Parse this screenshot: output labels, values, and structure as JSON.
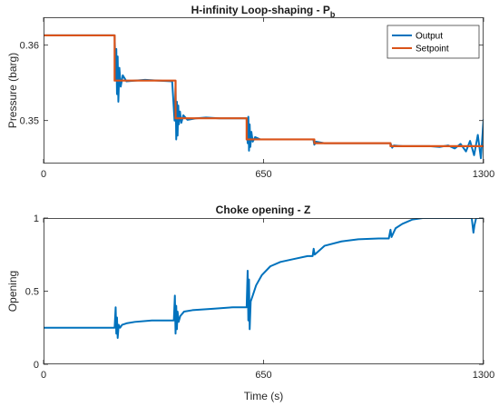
{
  "chart_data": [
    {
      "type": "line",
      "title": "H-infinity Loop-shaping - P",
      "title_subscript": "b",
      "xlabel": "",
      "ylabel": "Pressure (barg)",
      "xlim": [
        0,
        1300
      ],
      "ylim": [
        0.3443,
        0.3637
      ],
      "xticks": [
        0,
        650,
        1300
      ],
      "xtick_labels": [
        "0",
        "650",
        "1300"
      ],
      "yticks": [
        0.35,
        0.36
      ],
      "ytick_labels": [
        "0.35",
        "0.36"
      ],
      "legend": {
        "placement": "top-right",
        "entries": [
          "Output",
          "Setpoint"
        ]
      },
      "grid": false,
      "series": [
        {
          "name": "Output",
          "color": "#0072BD",
          "x": [
            0,
            210,
            213,
            215,
            217,
            219,
            221,
            224,
            228,
            234,
            245,
            270,
            300,
            340,
            380,
            387,
            390,
            392,
            394,
            396,
            398,
            400,
            403,
            407,
            413,
            425,
            450,
            480,
            520,
            570,
            600,
            603,
            605,
            607,
            609,
            611,
            614,
            618,
            625,
            640,
            680,
            720,
            760,
            797,
            800,
            805,
            830,
            880,
            930,
            980,
            1025,
            1030,
            1035,
            1060,
            1100,
            1140,
            1170,
            1195,
            1215,
            1232,
            1248,
            1260,
            1272,
            1283,
            1292,
            1300
          ],
          "y": [
            0.3613,
            0.3613,
            0.3555,
            0.3595,
            0.3535,
            0.3585,
            0.3525,
            0.357,
            0.3545,
            0.356,
            0.3552,
            0.3553,
            0.3554,
            0.3553,
            0.3552,
            0.35,
            0.3545,
            0.3475,
            0.3525,
            0.348,
            0.352,
            0.3495,
            0.3512,
            0.3497,
            0.3507,
            0.3501,
            0.3503,
            0.3504,
            0.3503,
            0.3503,
            0.3503,
            0.347,
            0.3505,
            0.346,
            0.3495,
            0.3465,
            0.3485,
            0.3472,
            0.3478,
            0.3475,
            0.3475,
            0.3475,
            0.3475,
            0.3475,
            0.3468,
            0.3472,
            0.347,
            0.347,
            0.347,
            0.347,
            0.347,
            0.3464,
            0.3467,
            0.3466,
            0.3466,
            0.3466,
            0.3465,
            0.3467,
            0.3463,
            0.3469,
            0.3459,
            0.3473,
            0.3454,
            0.3481,
            0.345,
            0.3502
          ]
        },
        {
          "name": "Setpoint",
          "color": "#D95319",
          "x": [
            0,
            210,
            210,
            390,
            390,
            600,
            600,
            800,
            800,
            1025,
            1025,
            1300
          ],
          "y": [
            0.3613,
            0.3613,
            0.3553,
            0.3553,
            0.3503,
            0.3503,
            0.3475,
            0.3475,
            0.347,
            0.347,
            0.3466,
            0.3466
          ]
        }
      ]
    },
    {
      "type": "line",
      "title": "Choke opening - Z",
      "xlabel": "Time (s)",
      "ylabel": "Opening",
      "xlim": [
        0,
        1300
      ],
      "ylim": [
        0,
        1
      ],
      "xticks": [
        0,
        650,
        1300
      ],
      "xtick_labels": [
        "0",
        "650",
        "1300"
      ],
      "yticks": [
        0,
        0.5,
        1
      ],
      "ytick_labels": [
        "0",
        "0.5",
        "1"
      ],
      "grid": false,
      "series": [
        {
          "name": "Choke opening",
          "color": "#0072BD",
          "x": [
            0,
            210,
            213,
            215,
            217,
            219,
            222,
            226,
            232,
            245,
            270,
            320,
            385,
            388,
            390,
            392,
            394,
            396,
            399,
            404,
            415,
            440,
            500,
            560,
            600,
            603,
            605,
            607,
            609,
            612,
            618,
            628,
            645,
            670,
            700,
            740,
            780,
            795,
            798,
            801,
            806,
            830,
            880,
            930,
            990,
            1020,
            1025,
            1028,
            1032,
            1040,
            1060,
            1090,
            1120,
            1160,
            1200,
            1240,
            1265,
            1270,
            1273,
            1278,
            1285,
            1300
          ],
          "y": [
            0.25,
            0.25,
            0.39,
            0.21,
            0.32,
            0.18,
            0.27,
            0.25,
            0.27,
            0.28,
            0.29,
            0.3,
            0.3,
            0.47,
            0.21,
            0.4,
            0.24,
            0.36,
            0.29,
            0.33,
            0.36,
            0.37,
            0.38,
            0.39,
            0.39,
            0.64,
            0.3,
            0.58,
            0.24,
            0.43,
            0.47,
            0.54,
            0.61,
            0.67,
            0.7,
            0.72,
            0.74,
            0.74,
            0.79,
            0.75,
            0.76,
            0.81,
            0.84,
            0.855,
            0.86,
            0.86,
            0.92,
            0.87,
            0.89,
            0.93,
            0.96,
            0.99,
            1.0,
            1.0,
            1.0,
            1.0,
            1.0,
            0.9,
            0.95,
            1.0,
            1.0,
            1.0
          ]
        }
      ]
    }
  ]
}
